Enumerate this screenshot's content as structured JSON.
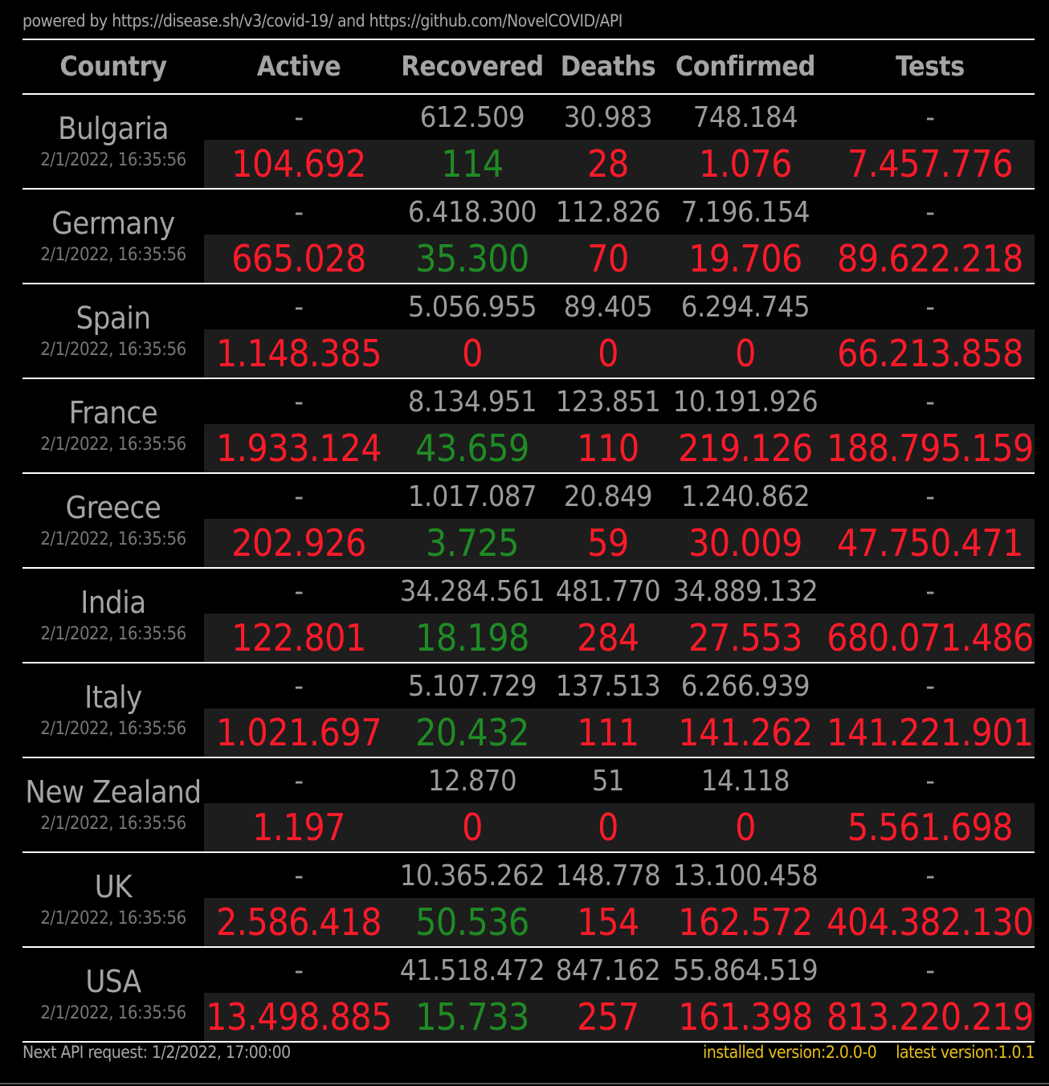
{
  "header_text": "powered by https://disease.sh/v3/covid-19/ and https://github.com/NovelCOVID/API",
  "columns": [
    "Country",
    "Active",
    "Recovered",
    "Deaths",
    "Confirmed",
    "Tests"
  ],
  "colors": {
    "background": "#000000",
    "text_gray": "#a4a4a4",
    "increase_red": "#ff1a2a",
    "recovered_green": "#1f8b24",
    "version_yellow": "#e8c01a"
  },
  "rows": [
    {
      "country": "Bulgaria",
      "updated": "2/1/2022, 16:35:56",
      "totals": {
        "active": "-",
        "recovered": "612.509",
        "deaths": "30.983",
        "confirmed": "748.184",
        "tests": "-"
      },
      "today": {
        "active": "104.692",
        "recovered": "114",
        "deaths": "28",
        "confirmed": "1.076",
        "tests": "7.457.776"
      }
    },
    {
      "country": "Germany",
      "updated": "2/1/2022, 16:35:56",
      "totals": {
        "active": "-",
        "recovered": "6.418.300",
        "deaths": "112.826",
        "confirmed": "7.196.154",
        "tests": "-"
      },
      "today": {
        "active": "665.028",
        "recovered": "35.300",
        "deaths": "70",
        "confirmed": "19.706",
        "tests": "89.622.218"
      }
    },
    {
      "country": "Spain",
      "updated": "2/1/2022, 16:35:56",
      "totals": {
        "active": "-",
        "recovered": "5.056.955",
        "deaths": "89.405",
        "confirmed": "6.294.745",
        "tests": "-"
      },
      "today": {
        "active": "1.148.385",
        "recovered": "0",
        "deaths": "0",
        "confirmed": "0",
        "tests": "66.213.858"
      }
    },
    {
      "country": "France",
      "updated": "2/1/2022, 16:35:56",
      "totals": {
        "active": "-",
        "recovered": "8.134.951",
        "deaths": "123.851",
        "confirmed": "10.191.926",
        "tests": "-"
      },
      "today": {
        "active": "1.933.124",
        "recovered": "43.659",
        "deaths": "110",
        "confirmed": "219.126",
        "tests": "188.795.159"
      }
    },
    {
      "country": "Greece",
      "updated": "2/1/2022, 16:35:56",
      "totals": {
        "active": "-",
        "recovered": "1.017.087",
        "deaths": "20.849",
        "confirmed": "1.240.862",
        "tests": "-"
      },
      "today": {
        "active": "202.926",
        "recovered": "3.725",
        "deaths": "59",
        "confirmed": "30.009",
        "tests": "47.750.471"
      }
    },
    {
      "country": "India",
      "updated": "2/1/2022, 16:35:56",
      "totals": {
        "active": "-",
        "recovered": "34.284.561",
        "deaths": "481.770",
        "confirmed": "34.889.132",
        "tests": "-"
      },
      "today": {
        "active": "122.801",
        "recovered": "18.198",
        "deaths": "284",
        "confirmed": "27.553",
        "tests": "680.071.486"
      }
    },
    {
      "country": "Italy",
      "updated": "2/1/2022, 16:35:56",
      "totals": {
        "active": "-",
        "recovered": "5.107.729",
        "deaths": "137.513",
        "confirmed": "6.266.939",
        "tests": "-"
      },
      "today": {
        "active": "1.021.697",
        "recovered": "20.432",
        "deaths": "111",
        "confirmed": "141.262",
        "tests": "141.221.901"
      }
    },
    {
      "country": "New Zealand",
      "updated": "2/1/2022, 16:35:56",
      "totals": {
        "active": "-",
        "recovered": "12.870",
        "deaths": "51",
        "confirmed": "14.118",
        "tests": "-"
      },
      "today": {
        "active": "1.197",
        "recovered": "0",
        "deaths": "0",
        "confirmed": "0",
        "tests": "5.561.698"
      }
    },
    {
      "country": "UK",
      "updated": "2/1/2022, 16:35:56",
      "totals": {
        "active": "-",
        "recovered": "10.365.262",
        "deaths": "148.778",
        "confirmed": "13.100.458",
        "tests": "-"
      },
      "today": {
        "active": "2.586.418",
        "recovered": "50.536",
        "deaths": "154",
        "confirmed": "162.572",
        "tests": "404.382.130"
      }
    },
    {
      "country": "USA",
      "updated": "2/1/2022, 16:35:56",
      "totals": {
        "active": "-",
        "recovered": "41.518.472",
        "deaths": "847.162",
        "confirmed": "55.864.519",
        "tests": "-"
      },
      "today": {
        "active": "13.498.885",
        "recovered": "15.733",
        "deaths": "257",
        "confirmed": "161.398",
        "tests": "813.220.219"
      }
    }
  ],
  "footer": {
    "next_request": "Next API request: 1/2/2022, 17:00:00",
    "installed_version": "installed version:2.0.0-0",
    "latest_version": "latest version:1.0.1"
  }
}
